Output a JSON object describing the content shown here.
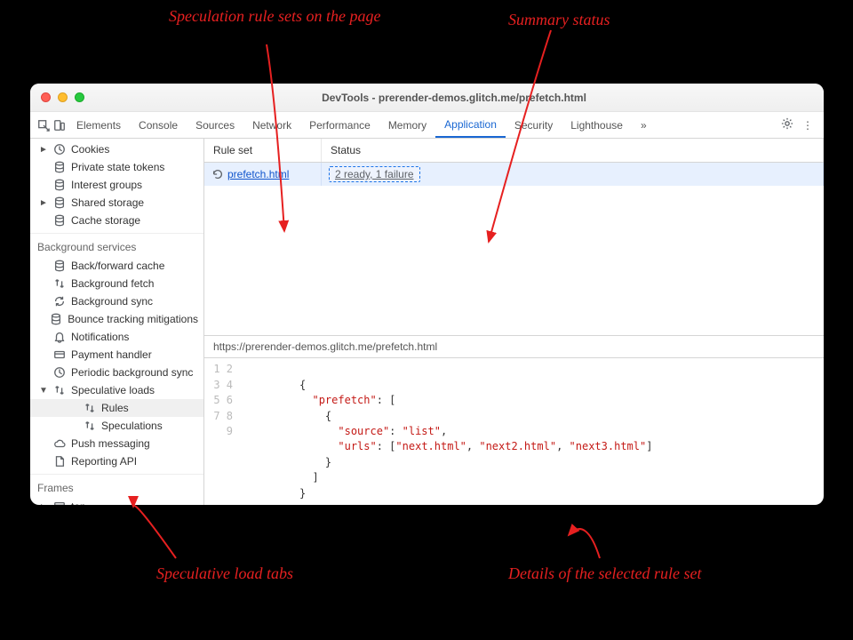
{
  "annotations": {
    "rulesets": "Speculation rule sets\non the page",
    "summary": "Summary status",
    "tabs": "Speculative load tabs",
    "details": "Details of the selected rule set"
  },
  "window": {
    "title": "DevTools - prerender-demos.glitch.me/prefetch.html"
  },
  "tabs": {
    "items": [
      "Elements",
      "Console",
      "Sources",
      "Network",
      "Performance",
      "Memory",
      "Application",
      "Security",
      "Lighthouse"
    ],
    "active": "Application",
    "more": "»"
  },
  "sidebar": {
    "group1": [
      {
        "label": "Cookies",
        "icon": "clock",
        "chev": "►"
      },
      {
        "label": "Private state tokens",
        "icon": "db"
      },
      {
        "label": "Interest groups",
        "icon": "db"
      },
      {
        "label": "Shared storage",
        "icon": "db",
        "chev": "►"
      },
      {
        "label": "Cache storage",
        "icon": "db"
      }
    ],
    "bg_title": "Background services",
    "bg": [
      {
        "label": "Back/forward cache",
        "icon": "db"
      },
      {
        "label": "Background fetch",
        "icon": "updown"
      },
      {
        "label": "Background sync",
        "icon": "sync"
      },
      {
        "label": "Bounce tracking mitigations",
        "icon": "db"
      },
      {
        "label": "Notifications",
        "icon": "bell"
      },
      {
        "label": "Payment handler",
        "icon": "card"
      },
      {
        "label": "Periodic background sync",
        "icon": "clock"
      },
      {
        "label": "Speculative loads",
        "icon": "updown",
        "chev": "▼"
      }
    ],
    "spec_children": [
      {
        "label": "Rules",
        "icon": "updown",
        "selected": true
      },
      {
        "label": "Speculations",
        "icon": "updown"
      }
    ],
    "after_spec": [
      {
        "label": "Push messaging",
        "icon": "cloud"
      },
      {
        "label": "Reporting API",
        "icon": "doc"
      }
    ],
    "frames_title": "Frames",
    "frames": [
      {
        "label": "top",
        "icon": "frame",
        "chev": "►"
      }
    ]
  },
  "table": {
    "col_ruleset": "Rule set",
    "col_status": "Status",
    "row": {
      "ruleset": "prefetch.html",
      "status": "2 ready, 1 failure"
    }
  },
  "detail_url": "https://prerender-demos.glitch.me/prefetch.html",
  "code": {
    "line_count": 9,
    "k_prefetch": "\"prefetch\"",
    "k_source": "\"source\"",
    "v_source": "\"list\"",
    "k_urls": "\"urls\"",
    "v_u1": "\"next.html\"",
    "v_u2": "\"next2.html\"",
    "v_u3": "\"next3.html\""
  },
  "colors": {
    "accent": "#e62020",
    "link": "#1967d2"
  }
}
